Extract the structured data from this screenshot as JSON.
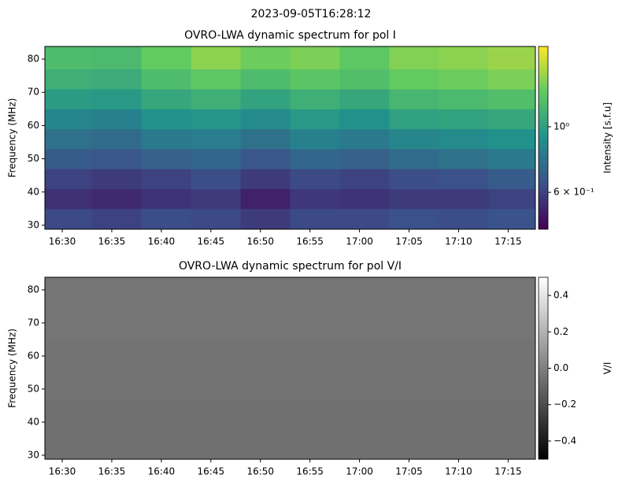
{
  "title": "2023-09-05T16:28:12",
  "chart_data": [
    {
      "type": "heatmap",
      "title": "OVRO-LWA dynamic spectrum for pol I",
      "y_label": "Frequency (MHz)",
      "colorbar_label": "Intensity [s.f.u]",
      "colormap": "viridis",
      "color_log": true,
      "xlim": [
        "16:28:15",
        "17:17:45"
      ],
      "xticks": [
        "16:30",
        "16:35",
        "16:40",
        "16:45",
        "16:50",
        "16:55",
        "17:00",
        "17:05",
        "17:10",
        "17:15"
      ],
      "ylim": [
        28.8,
        83.8
      ],
      "yticks": [
        30,
        40,
        50,
        60,
        70,
        80
      ],
      "clim": [
        0.45,
        1.87
      ],
      "cticks": [
        {
          "value": 1,
          "label": "10⁰"
        },
        {
          "value": 0.6,
          "label": "6 × 10⁻¹"
        }
      ],
      "x_edges": [
        "16:28:15",
        "16:33",
        "16:38",
        "16:43",
        "16:48",
        "16:53",
        "16:58",
        "17:03",
        "17:08",
        "17:13",
        "17:17:45"
      ],
      "y_edges": [
        28.8,
        35,
        41,
        47,
        53,
        59,
        65,
        71,
        77,
        83.8
      ],
      "values": [
        [
          0.62,
          0.6,
          0.63,
          0.62,
          0.58,
          0.62,
          0.62,
          0.64,
          0.63,
          0.65
        ],
        [
          0.55,
          0.54,
          0.56,
          0.58,
          0.52,
          0.57,
          0.56,
          0.58,
          0.58,
          0.6
        ],
        [
          0.6,
          0.58,
          0.6,
          0.63,
          0.58,
          0.62,
          0.6,
          0.63,
          0.64,
          0.68
        ],
        [
          0.68,
          0.66,
          0.7,
          0.72,
          0.66,
          0.72,
          0.7,
          0.74,
          0.76,
          0.8
        ],
        [
          0.76,
          0.74,
          0.8,
          0.82,
          0.76,
          0.84,
          0.8,
          0.86,
          0.88,
          0.92
        ],
        [
          0.86,
          0.84,
          0.92,
          0.94,
          0.88,
          0.96,
          0.92,
          1.0,
          1.02,
          1.05
        ],
        [
          0.98,
          0.96,
          1.05,
          1.1,
          1.02,
          1.1,
          1.05,
          1.15,
          1.18,
          1.22
        ],
        [
          1.1,
          1.08,
          1.2,
          1.3,
          1.2,
          1.28,
          1.22,
          1.32,
          1.35,
          1.4
        ],
        [
          1.2,
          1.18,
          1.32,
          1.45,
          1.35,
          1.4,
          1.3,
          1.42,
          1.45,
          1.5
        ]
      ]
    },
    {
      "type": "heatmap",
      "title": "OVRO-LWA dynamic spectrum for pol V/I",
      "y_label": "Frequency (MHz)",
      "colorbar_label": "V/I",
      "colormap": "gray",
      "color_log": false,
      "xlim": [
        "16:28:15",
        "17:17:45"
      ],
      "xticks": [
        "16:30",
        "16:35",
        "16:40",
        "16:45",
        "16:50",
        "16:55",
        "17:00",
        "17:05",
        "17:10",
        "17:15"
      ],
      "ylim": [
        28.8,
        83.8
      ],
      "yticks": [
        30,
        40,
        50,
        60,
        70,
        80
      ],
      "clim": [
        -0.5,
        0.5
      ],
      "cticks": [
        {
          "value": -0.4,
          "label": "−0.4"
        },
        {
          "value": -0.2,
          "label": "−0.2"
        },
        {
          "value": 0,
          "label": "0.0"
        },
        0.2,
        0.4
      ],
      "x_edges": [
        "16:28:15",
        "16:53",
        "17:17:45"
      ],
      "y_edges": [
        28.8,
        47,
        65,
        83.8
      ],
      "values": [
        [
          -0.06,
          -0.06
        ],
        [
          -0.05,
          -0.05
        ],
        [
          -0.04,
          -0.04
        ]
      ]
    }
  ]
}
